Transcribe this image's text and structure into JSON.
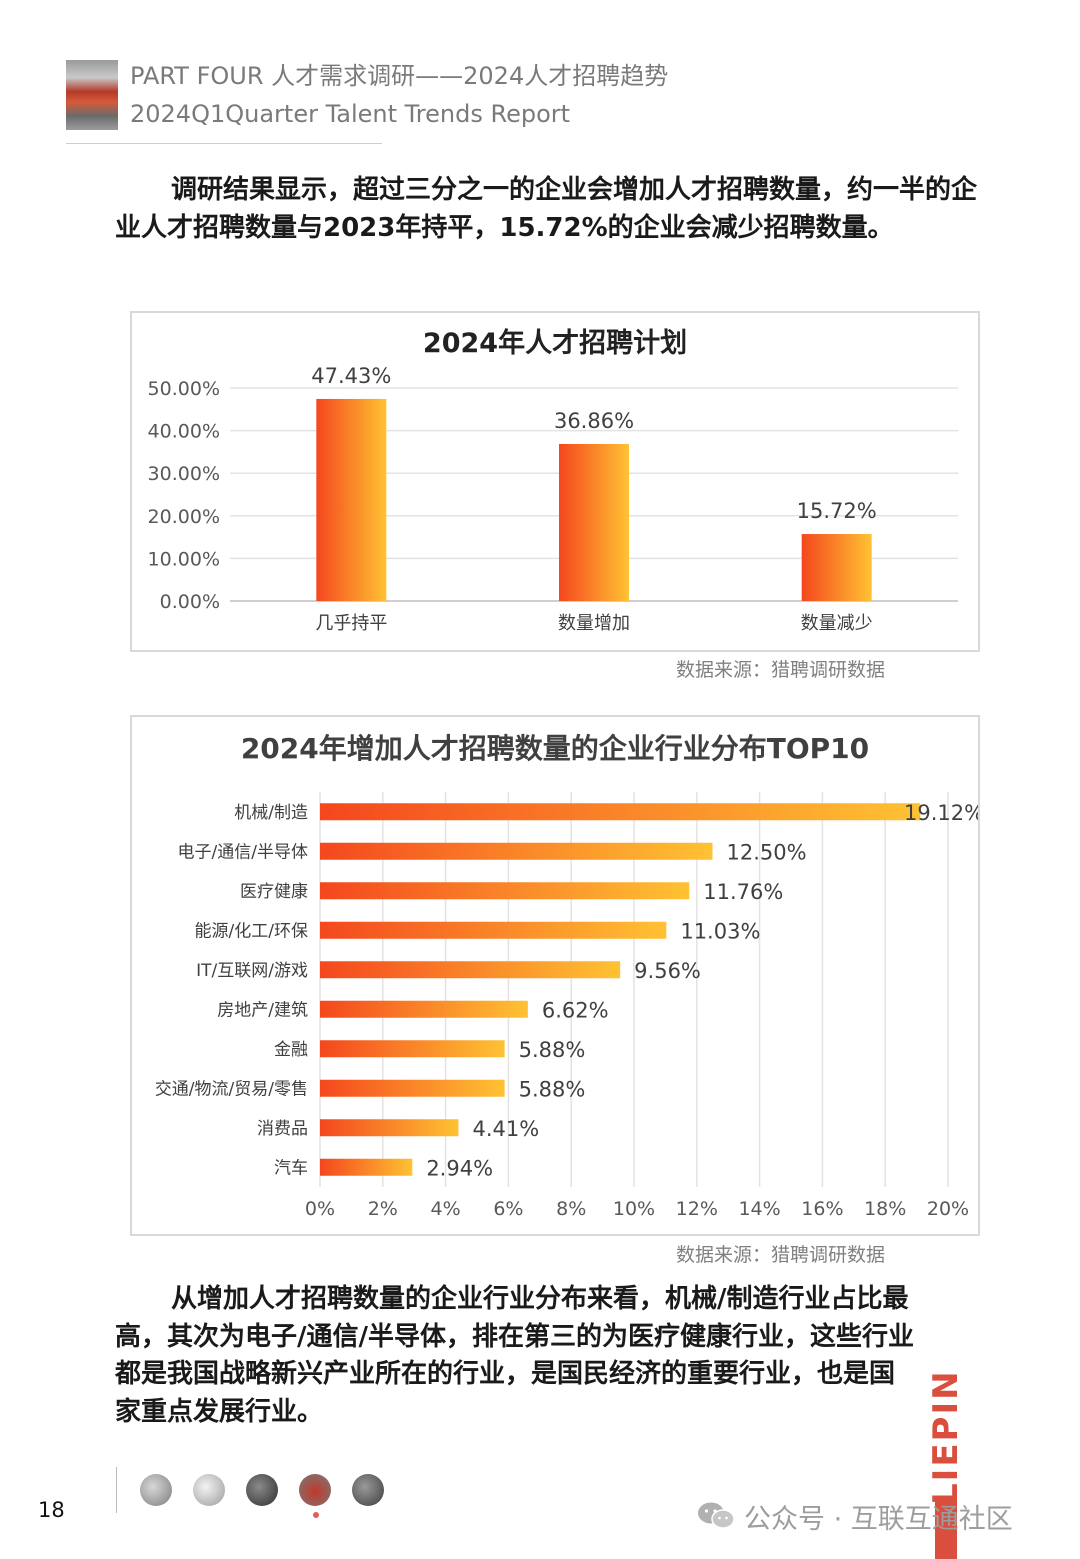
{
  "header": {
    "line1": "PART FOUR 人才需求调研——2024人才招聘趋势",
    "line2": "2024Q1Quarter Talent Trends Report"
  },
  "intro_paragraph": "调研结果显示，超过三分之一的企业会增加人才招聘数量，约一半的企业人才招聘数量与2023年持平，15.72%的企业会减少招聘数量。",
  "chart_data": [
    {
      "type": "bar",
      "title": "2024年人才招聘计划",
      "categories": [
        "几乎持平",
        "数量增加",
        "数量减少"
      ],
      "values": [
        47.43,
        36.86,
        15.72
      ],
      "value_labels": [
        "47.43%",
        "36.86%",
        "15.72%"
      ],
      "ylim": [
        0,
        50
      ],
      "yticks": [
        "0.00%",
        "10.00%",
        "20.00%",
        "30.00%",
        "40.00%",
        "50.00%"
      ],
      "grid": true,
      "xlabel": "",
      "ylabel": ""
    },
    {
      "type": "bar",
      "orientation": "horizontal",
      "title": "2024年增加人才招聘数量的企业行业分布TOP10",
      "categories": [
        "机械/制造",
        "电子/通信/半导体",
        "医疗健康",
        "能源/化工/环保",
        "IT/互联网/游戏",
        "房地产/建筑",
        "金融",
        "交通/物流/贸易/零售",
        "消费品",
        "汽车"
      ],
      "values": [
        19.12,
        12.5,
        11.76,
        11.03,
        9.56,
        6.62,
        5.88,
        5.88,
        4.41,
        2.94
      ],
      "value_labels": [
        "19.12%",
        "12.50%",
        "11.76%",
        "11.03%",
        "9.56%",
        "6.62%",
        "5.88%",
        "5.88%",
        "4.41%",
        "2.94%"
      ],
      "xlim": [
        0,
        20
      ],
      "xticks": [
        "0%",
        "2%",
        "4%",
        "6%",
        "8%",
        "10%",
        "12%",
        "14%",
        "16%",
        "18%",
        "20%"
      ],
      "grid": true,
      "xlabel": "",
      "ylabel": ""
    }
  ],
  "source_1": "数据来源：猎聘调研数据",
  "source_2": "数据来源：猎聘调研数据",
  "conclusion_paragraph": "从增加人才招聘数量的企业行业分布来看，机械/制造行业占比最高，其次为电子/通信/半导体，排在第三的为医疗健康行业，这些行业都是我国战略新兴产业所在的行业，是国民经济的重要行业，也是国家重点发展行业。",
  "footer": {
    "page_number": "18",
    "brand": "LIEPIN",
    "watermark": "公众号 · 互联互通社区"
  },
  "colors": {
    "bar_gradient_start": "#f4471e",
    "bar_gradient_end": "#ffc233",
    "brand_red": "#d94e3c"
  }
}
